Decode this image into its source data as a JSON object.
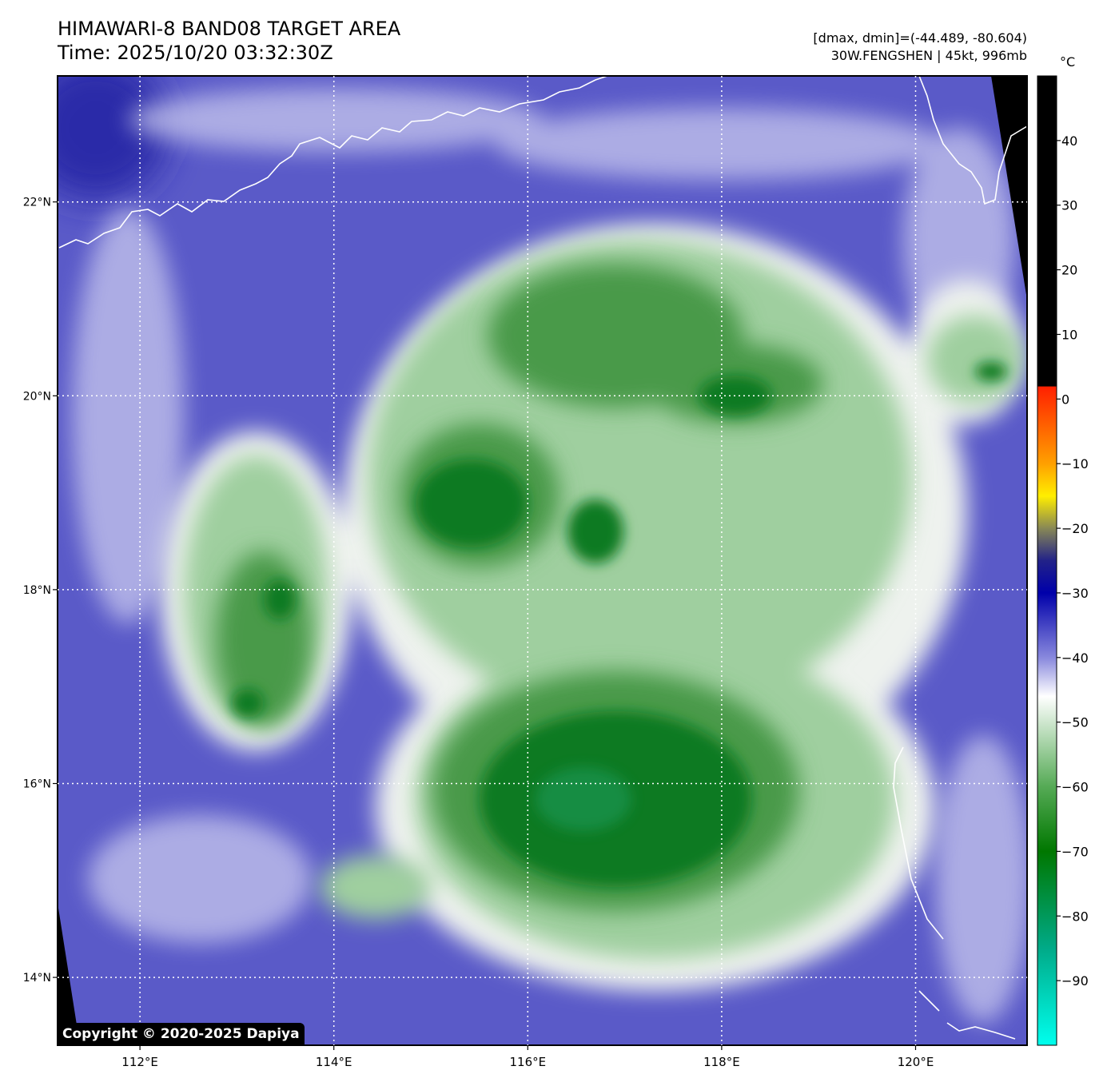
{
  "header": {
    "title_line1": "HIMAWARI-8 BAND08 TARGET AREA",
    "title_line2": "Time: 2025/10/20 03:32:30Z",
    "range_text": "[dmax, dmin]=(-44.489, -80.604)",
    "storm_text": "30W.FENGSHEN | 45kt, 996mb"
  },
  "map": {
    "lon_range": [
      111.15,
      121.15
    ],
    "lat_range": [
      13.3,
      23.3
    ],
    "lon_ticks": [
      {
        "value": 112,
        "label": "112°E"
      },
      {
        "value": 114,
        "label": "114°E"
      },
      {
        "value": 116,
        "label": "116°E"
      },
      {
        "value": 118,
        "label": "118°E"
      },
      {
        "value": 120,
        "label": "120°E"
      }
    ],
    "lat_ticks": [
      {
        "value": 22,
        "label": "22°N"
      },
      {
        "value": 20,
        "label": "20°N"
      },
      {
        "value": 18,
        "label": "18°N"
      },
      {
        "value": 16,
        "label": "16°N"
      },
      {
        "value": 14,
        "label": "14°N"
      }
    ],
    "gridlines": "dotted white",
    "background_color": "#5858c8"
  },
  "colorbar": {
    "unit": "°C",
    "range": [
      -100,
      50
    ],
    "ticks": [
      40,
      30,
      20,
      10,
      0,
      -10,
      -20,
      -30,
      -40,
      -50,
      -60,
      -70,
      -80,
      -90
    ],
    "stops": [
      {
        "value": 50,
        "color": "#000000"
      },
      {
        "value": 2,
        "color": "#000000"
      },
      {
        "value": 1.9,
        "color": "#ff2000"
      },
      {
        "value": -10,
        "color": "#ffa000"
      },
      {
        "value": -15,
        "color": "#ffee00"
      },
      {
        "value": -20,
        "color": "#888855"
      },
      {
        "value": -25,
        "color": "#222288"
      },
      {
        "value": -30,
        "color": "#0000aa"
      },
      {
        "value": -40,
        "color": "#8888dd"
      },
      {
        "value": -46,
        "color": "#ffffff"
      },
      {
        "value": -60,
        "color": "#55aa55"
      },
      {
        "value": -70,
        "color": "#007700"
      },
      {
        "value": -85,
        "color": "#00aa88"
      },
      {
        "value": -100,
        "color": "#00ffee"
      }
    ]
  },
  "copyright": "Copyright © 2020-2025 Dapiya"
}
